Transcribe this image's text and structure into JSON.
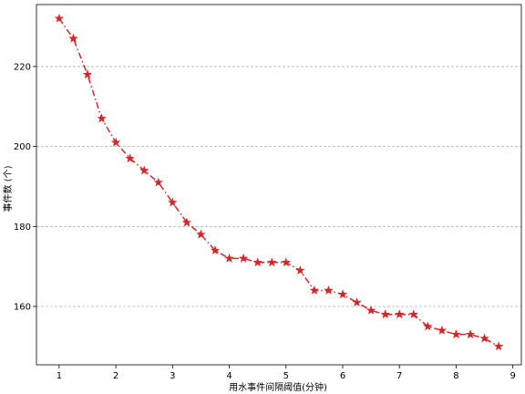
{
  "chart_data": {
    "type": "line",
    "title": "",
    "xlabel": "用水事件间隔阈值(分钟)",
    "ylabel": "事件数 (个)",
    "xlim": [
      0.6,
      9.15
    ],
    "ylim": [
      145.4,
      235.5
    ],
    "x_ticks": [
      1,
      2,
      3,
      4,
      5,
      6,
      7,
      8,
      9
    ],
    "y_ticks": [
      160,
      180,
      200,
      220
    ],
    "grid": "y-dashed",
    "legend": "none",
    "series": [
      {
        "marker": "star",
        "line_style": "dash-dot",
        "color": "#d62728",
        "points": [
          {
            "x": 1.0,
            "y": 232
          },
          {
            "x": 1.25,
            "y": 227
          },
          {
            "x": 1.5,
            "y": 218
          },
          {
            "x": 1.75,
            "y": 207
          },
          {
            "x": 2.0,
            "y": 201
          },
          {
            "x": 2.25,
            "y": 197
          },
          {
            "x": 2.5,
            "y": 194
          },
          {
            "x": 2.75,
            "y": 191
          },
          {
            "x": 3.0,
            "y": 186
          },
          {
            "x": 3.25,
            "y": 181
          },
          {
            "x": 3.5,
            "y": 178
          },
          {
            "x": 3.75,
            "y": 174
          },
          {
            "x": 4.0,
            "y": 172
          },
          {
            "x": 4.25,
            "y": 172
          },
          {
            "x": 4.5,
            "y": 171
          },
          {
            "x": 4.75,
            "y": 171
          },
          {
            "x": 5.0,
            "y": 171
          },
          {
            "x": 5.25,
            "y": 169
          },
          {
            "x": 5.5,
            "y": 164
          },
          {
            "x": 5.75,
            "y": 164
          },
          {
            "x": 6.0,
            "y": 163
          },
          {
            "x": 6.25,
            "y": 161
          },
          {
            "x": 6.5,
            "y": 159
          },
          {
            "x": 6.75,
            "y": 158
          },
          {
            "x": 7.0,
            "y": 158
          },
          {
            "x": 7.25,
            "y": 158
          },
          {
            "x": 7.5,
            "y": 155
          },
          {
            "x": 7.75,
            "y": 154
          },
          {
            "x": 8.0,
            "y": 153
          },
          {
            "x": 8.25,
            "y": 153
          },
          {
            "x": 8.5,
            "y": 152
          },
          {
            "x": 8.75,
            "y": 150
          }
        ]
      }
    ]
  },
  "colors": {
    "series": "#d62728",
    "grid": "#b0b0b0",
    "axis": "#000000"
  }
}
